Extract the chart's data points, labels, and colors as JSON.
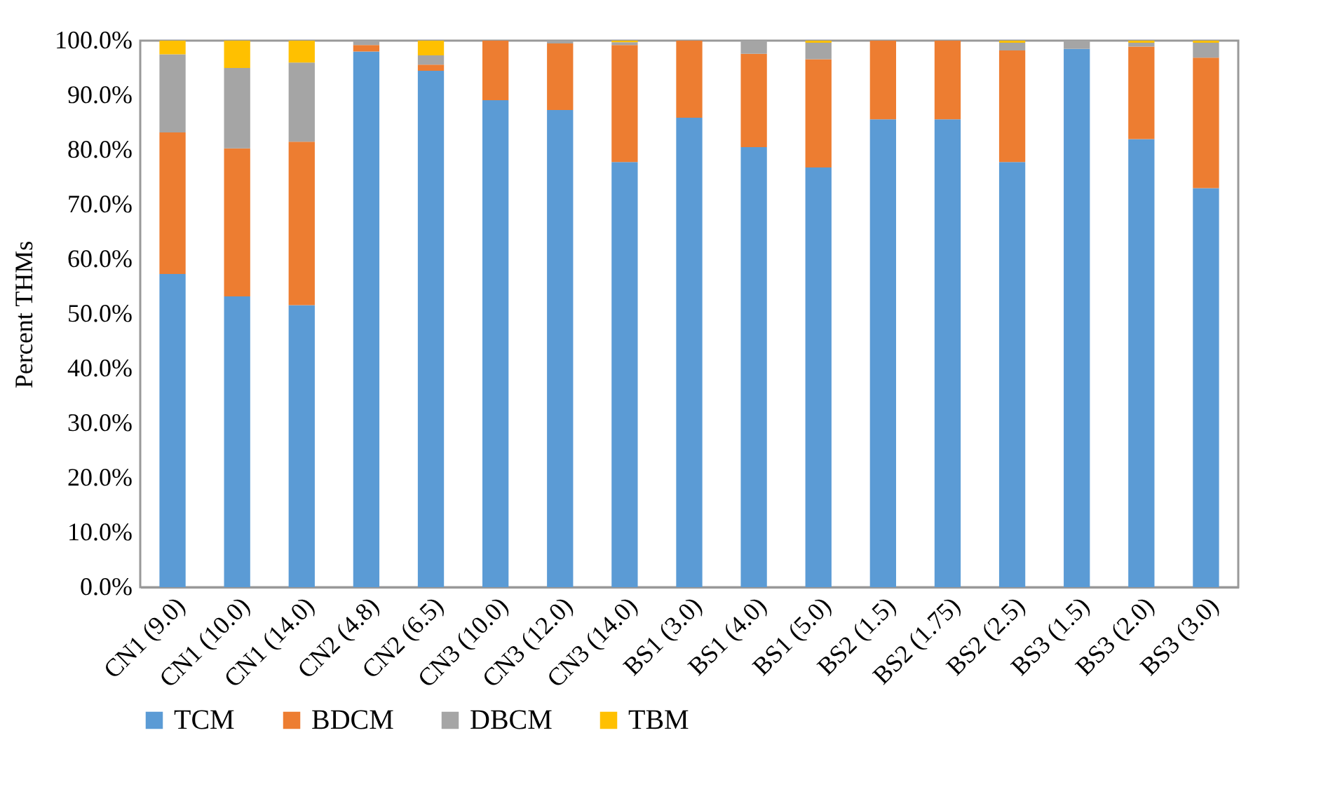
{
  "chart_data": {
    "type": "bar",
    "stacked": true,
    "ylabel": "Percent THMs",
    "categories": [
      "CN1 (9.0)",
      "CN1 (10.0)",
      "CN1 (14.0)",
      "CN2 (4.8)",
      "CN2 (6.5)",
      "CN3 (10.0)",
      "CN3 (12.0)",
      "CN3 (14.0)",
      "BS1 (3.0)",
      "BS1 (4.0)",
      "BS1 (5.0)",
      "BS2 (1.5)",
      "BS2 (1.75)",
      "BS2 (2.5)",
      "BS3 (1.5)",
      "BS3 (2.0)",
      "BS3 (3.0)"
    ],
    "series": [
      {
        "name": "TCM",
        "color": "#5b9bd5",
        "values": [
          57.3,
          53.2,
          51.6,
          98.0,
          94.5,
          89.1,
          87.3,
          77.8,
          85.9,
          80.5,
          76.8,
          85.6,
          85.6,
          77.8,
          98.5,
          82.0,
          73.0
        ]
      },
      {
        "name": "BDCM",
        "color": "#ed7d31",
        "values": [
          25.9,
          27.1,
          29.9,
          1.2,
          1.1,
          10.9,
          12.2,
          21.4,
          14.1,
          17.1,
          19.8,
          14.4,
          14.4,
          20.4,
          0,
          16.9,
          23.9
        ]
      },
      {
        "name": "DBCM",
        "color": "#a5a5a5",
        "values": [
          14.3,
          14.7,
          14.5,
          0.8,
          1.7,
          0,
          0.5,
          0.5,
          0,
          2.4,
          3.0,
          0,
          0,
          1.4,
          1.5,
          0.7,
          2.7
        ]
      },
      {
        "name": "TBM",
        "color": "#ffc000",
        "values": [
          2.5,
          5.0,
          4.0,
          0,
          2.7,
          0,
          0,
          0.3,
          0,
          0,
          0.4,
          0,
          0,
          0.4,
          0,
          0.4,
          0.4
        ]
      }
    ],
    "ylim": [
      0,
      100
    ],
    "yticks": [
      {
        "value": 0,
        "label": "0.0%"
      },
      {
        "value": 10,
        "label": "10.0%"
      },
      {
        "value": 20,
        "label": "20.0%"
      },
      {
        "value": 30,
        "label": "30.0%"
      },
      {
        "value": 40,
        "label": "40.0%"
      },
      {
        "value": 50,
        "label": "50.0%"
      },
      {
        "value": 60,
        "label": "60.0%"
      },
      {
        "value": 70,
        "label": "70.0%"
      },
      {
        "value": 80,
        "label": "80.0%"
      },
      {
        "value": 90,
        "label": "90.0%"
      },
      {
        "value": 100,
        "label": "100.0%"
      }
    ],
    "grid": false,
    "legend": "bottom"
  }
}
